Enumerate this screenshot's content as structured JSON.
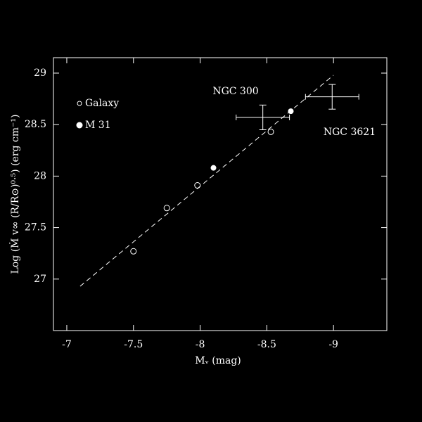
{
  "chart_data": {
    "type": "scatter",
    "x_label": "Mᵥ (mag)",
    "y_label": "Log (Ṁ v∞ (R/R⊙)⁰·⁵) (erg cm⁻¹)",
    "xlim": [
      -6.9,
      -9.4
    ],
    "ylim": [
      26.5,
      29.15
    ],
    "xticks": [
      -7,
      -7.5,
      -8,
      -8.5,
      -9
    ],
    "yticks": [
      27,
      27.5,
      28,
      28.5,
      29
    ],
    "series": [
      {
        "name": "Galaxy",
        "marker": "open",
        "color": "#ffffff",
        "x": [
          -7.5,
          -7.75,
          -7.98,
          -8.53
        ],
        "values": [
          27.27,
          27.69,
          27.91,
          28.43
        ]
      },
      {
        "name": "M 31",
        "marker": "filled",
        "color": "#ffffff",
        "x": [
          -8.1,
          -8.68
        ],
        "values": [
          28.08,
          28.63
        ]
      },
      {
        "name": "NGC 300",
        "marker": "errorbar",
        "color": "#ffffff",
        "x": [
          -8.47
        ],
        "values": [
          28.57
        ],
        "xerr": [
          0.2
        ],
        "yerr": [
          0.12
        ]
      },
      {
        "name": "NGC 3621",
        "marker": "errorbar",
        "color": "#ffffff",
        "x": [
          -8.99
        ],
        "values": [
          28.77
        ],
        "xerr": [
          0.2
        ],
        "yerr": [
          0.12
        ]
      },
      {
        "marker": "dashed",
        "color": "#ffffff",
        "x": [
          -7.1,
          -9.0
        ],
        "values": [
          26.93,
          28.98
        ]
      }
    ]
  }
}
